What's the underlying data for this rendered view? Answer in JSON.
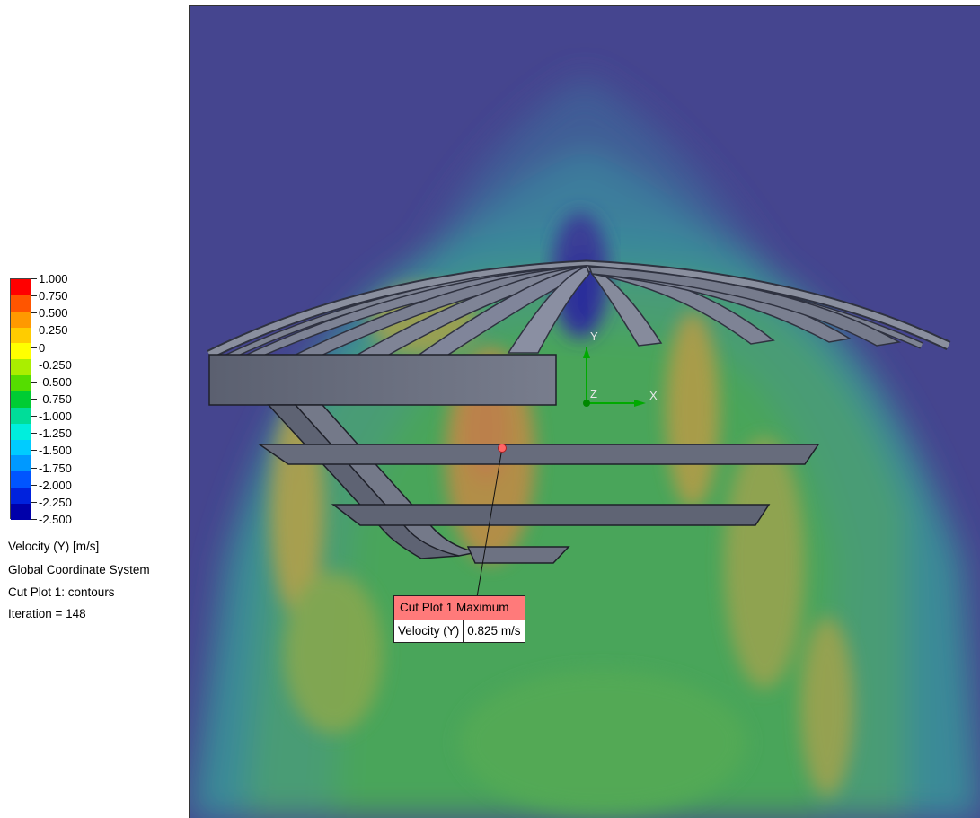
{
  "legend": {
    "ticks": [
      "1.000",
      "0.750",
      "0.500",
      "0.250",
      "0",
      "-0.250",
      "-0.500",
      "-0.750",
      "-1.000",
      "-1.250",
      "-1.500",
      "-1.750",
      "-2.000",
      "-2.250",
      "-2.500"
    ],
    "colors": [
      "#ff0000",
      "#ff5500",
      "#ff9900",
      "#ffcc00",
      "#ffff00",
      "#aaee00",
      "#55dd00",
      "#00cc33",
      "#00dd99",
      "#00eedd",
      "#00ccff",
      "#0099ff",
      "#0055ff",
      "#0022dd",
      "#0000aa"
    ],
    "quantity": "Velocity (Y) [m/s]",
    "coord_system": "Global Coordinate System",
    "plot_name": "Cut Plot 1: contours",
    "iteration": "Iteration = 148"
  },
  "triad": {
    "x": "X",
    "y": "Y",
    "z": "Z"
  },
  "callout": {
    "title": "Cut Plot 1 Maximum",
    "param": "Velocity (Y)",
    "value": "0.825 m/s"
  },
  "colors": {
    "background_deep": "#45458f",
    "background_mid": "#3d7d9c",
    "field_green": "#4aa55a",
    "field_orange": "#c7a040",
    "geometry": "#6a6f80",
    "callout_header": "#ff7a7a"
  }
}
